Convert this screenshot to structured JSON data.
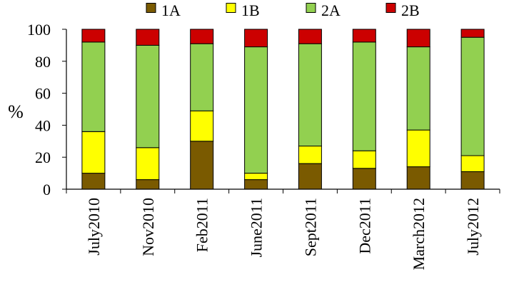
{
  "chart_data": {
    "type": "bar",
    "stacked": true,
    "title": "",
    "xlabel": "",
    "ylabel": "%",
    "ylim": [
      0,
      100
    ],
    "yticks": [
      0,
      20,
      40,
      60,
      80,
      100
    ],
    "grid": false,
    "legend_position": "top",
    "categories": [
      "July2010",
      "Nov2010",
      "Feb2011",
      "June2011",
      "Sept2011",
      "Dec2011",
      "March2012",
      "July2012"
    ],
    "series": [
      {
        "name": "1A",
        "color": "#7a5a00",
        "values": [
          10,
          6,
          30,
          6,
          16,
          13,
          14,
          11
        ]
      },
      {
        "name": "1B",
        "color": "#ffff00",
        "values": [
          26,
          20,
          19,
          4,
          11,
          11,
          23,
          10
        ]
      },
      {
        "name": "2A",
        "color": "#92d050",
        "values": [
          56,
          64,
          42,
          79,
          64,
          68,
          52,
          74
        ]
      },
      {
        "name": "2B",
        "color": "#cc0000",
        "values": [
          8,
          10,
          9,
          11,
          9,
          8,
          11,
          5
        ]
      }
    ]
  }
}
